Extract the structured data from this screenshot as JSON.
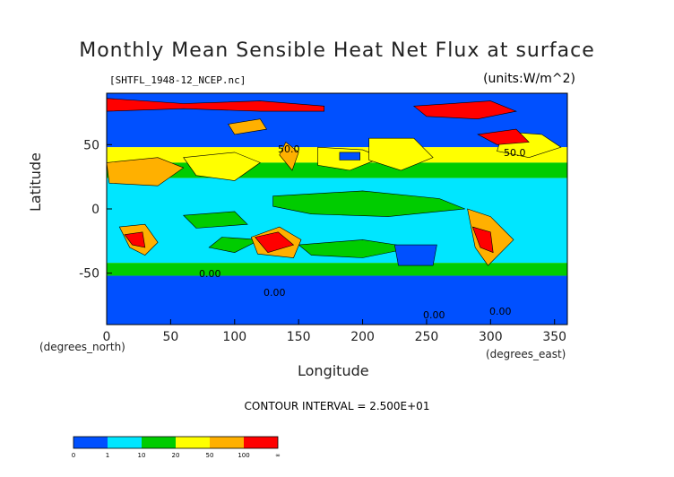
{
  "chart_data": {
    "type": "heatmap",
    "title": "Monthly Mean Sensible Heat Net Flux at surface",
    "subtitle": "[SHTFL_1948-12_NCEP.nc]",
    "units": "(units:W/m^2)",
    "xlabel": "Longitude",
    "ylabel": "Latitude",
    "x_unit_label": "(degrees_east)",
    "y_unit_label": "(degrees_north)",
    "xlim": [
      0,
      360
    ],
    "ylim": [
      -90,
      90
    ],
    "x_ticks": [
      0,
      50,
      100,
      150,
      200,
      250,
      300,
      350
    ],
    "y_ticks": [
      50,
      0,
      -50
    ],
    "contour_interval": "CONTOUR INTERVAL = 2.500E+01",
    "contour_labels": [
      "50.0",
      "0.00",
      "0.00",
      "0.00",
      "50.0",
      "0.00"
    ],
    "colorbar": {
      "levels": [
        "0",
        "1",
        "10",
        "20",
        "50",
        "100",
        "∞"
      ],
      "colors": [
        "#0050ff",
        "#00e6ff",
        "#00cc00",
        "#ffff00",
        "#ffb000",
        "#ff0000"
      ]
    }
  }
}
